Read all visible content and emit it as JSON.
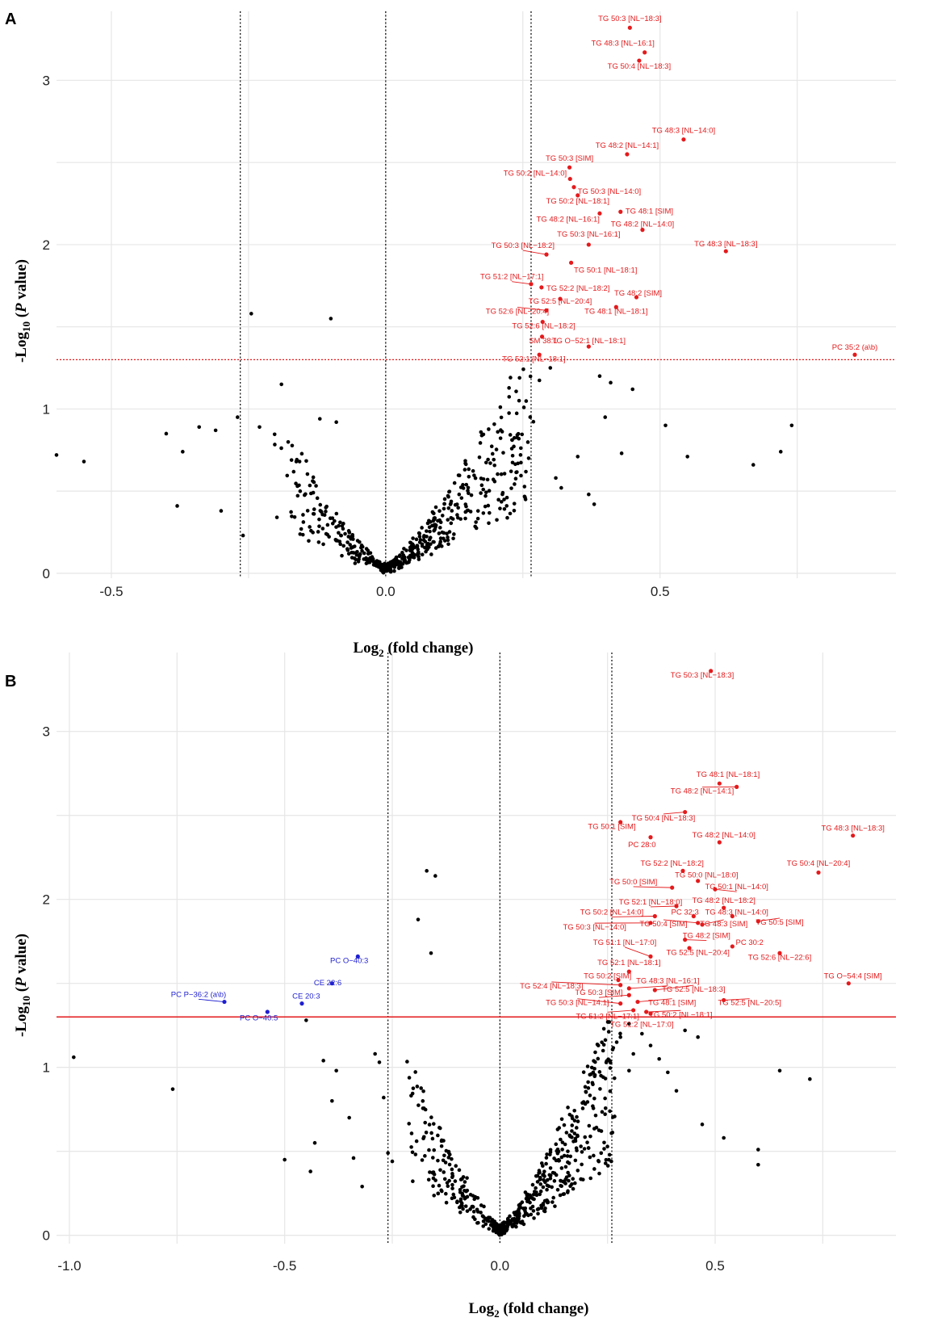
{
  "chart_data": [
    {
      "panel": "A",
      "type": "scatter",
      "xlabel": "Log2 (fold change)",
      "ylabel": "-Log10 (P value)",
      "xticks": [
        "-0.5",
        "0.0",
        "0.5"
      ],
      "yticks": [
        "0",
        "1",
        "2",
        "3"
      ],
      "xlim": [
        -0.6,
        0.93
      ],
      "ylim": [
        -0.03,
        3.42
      ],
      "vlines": [
        -0.265,
        0.0,
        0.265
      ],
      "hline": 1.3,
      "hline_style": "dotted",
      "colors": {
        "point": "#000000",
        "up": "#e41a1c",
        "down": "#1f1fd1",
        "threshold": "#e41a1c"
      },
      "labeled": [
        {
          "label": "TG 50:3 [NL−18:3]",
          "x": 0.445,
          "y": 3.32,
          "lx": 0.445,
          "ly": 3.36,
          "color": "up",
          "anchor": "middle"
        },
        {
          "label": "TG 48:3 [NL−16:1]",
          "x": 0.472,
          "y": 3.17,
          "lx": 0.49,
          "ly": 3.21,
          "color": "up",
          "anchor": "end"
        },
        {
          "label": "TG 50:4 [NL−18:3]",
          "x": 0.462,
          "y": 3.12,
          "lx": 0.462,
          "ly": 3.07,
          "color": "up",
          "anchor": "middle"
        },
        {
          "label": "TG 48:3 [NL−14:0]",
          "x": 0.543,
          "y": 2.64,
          "lx": 0.543,
          "ly": 2.68,
          "color": "up",
          "anchor": "middle"
        },
        {
          "label": "TG 48:2 [NL−14:1]",
          "x": 0.44,
          "y": 2.55,
          "lx": 0.44,
          "ly": 2.59,
          "color": "up",
          "anchor": "middle"
        },
        {
          "label": "TG 50:3 [SIM]",
          "x": 0.335,
          "y": 2.47,
          "lx": 0.335,
          "ly": 2.51,
          "color": "up",
          "anchor": "middle"
        },
        {
          "label": "TG 50:2 [NL−14:0]",
          "x": 0.336,
          "y": 2.4,
          "lx": 0.33,
          "ly": 2.42,
          "color": "up",
          "anchor": "end"
        },
        {
          "label": "TG 50:3 [NL−14:0]",
          "x": 0.343,
          "y": 2.35,
          "lx": 0.35,
          "ly": 2.31,
          "color": "up",
          "anchor": "start"
        },
        {
          "label": "TG 50:2 [NL−18:1]",
          "x": 0.35,
          "y": 2.3,
          "lx": 0.35,
          "ly": 2.25,
          "color": "up",
          "anchor": "middle"
        },
        {
          "label": "TG 48:1 [SIM]",
          "x": 0.428,
          "y": 2.2,
          "lx": 0.437,
          "ly": 2.19,
          "color": "up",
          "anchor": "start"
        },
        {
          "label": "TG 48:2 [NL−16:1]",
          "x": 0.39,
          "y": 2.19,
          "lx": 0.39,
          "ly": 2.14,
          "color": "up",
          "anchor": "end"
        },
        {
          "label": "TG 48:2 [NL−14:0]",
          "x": 0.468,
          "y": 2.09,
          "lx": 0.468,
          "ly": 2.11,
          "color": "up",
          "anchor": "middle"
        },
        {
          "label": "TG 50:3 [NL−16:1]",
          "x": 0.37,
          "y": 2.0,
          "lx": 0.37,
          "ly": 2.05,
          "color": "up",
          "anchor": "middle"
        },
        {
          "label": "TG 48:3 [NL−18:3]",
          "x": 0.62,
          "y": 1.96,
          "lx": 0.62,
          "ly": 1.99,
          "color": "up",
          "anchor": "middle"
        },
        {
          "label": "TG 50:3 [NL−18:2]",
          "x": 0.293,
          "y": 1.94,
          "lx": 0.25,
          "ly": 1.98,
          "color": "up",
          "anchor": "middle"
        },
        {
          "label": "TG 50:1 [NL−18:1]",
          "x": 0.338,
          "y": 1.89,
          "lx": 0.343,
          "ly": 1.83,
          "color": "up",
          "anchor": "start"
        },
        {
          "label": "TG 51:2 [NL−17:1]",
          "x": 0.265,
          "y": 1.76,
          "lx": 0.23,
          "ly": 1.79,
          "color": "up",
          "anchor": "middle"
        },
        {
          "label": "TG 52:2 [NL−18:2]",
          "x": 0.284,
          "y": 1.74,
          "lx": 0.293,
          "ly": 1.72,
          "color": "up",
          "anchor": "start"
        },
        {
          "label": "TG 48:2 [SIM]",
          "x": 0.457,
          "y": 1.68,
          "lx": 0.46,
          "ly": 1.69,
          "color": "up",
          "anchor": "middle"
        },
        {
          "label": "TG 52:5 [NL−20:4]",
          "x": 0.318,
          "y": 1.67,
          "lx": 0.318,
          "ly": 1.64,
          "color": "up",
          "anchor": "middle"
        },
        {
          "label": "TG 52:6 [NL−20:4]",
          "x": 0.293,
          "y": 1.6,
          "lx": 0.24,
          "ly": 1.58,
          "color": "up",
          "anchor": "middle"
        },
        {
          "label": "TG 48:1 [NL−18:1]",
          "x": 0.42,
          "y": 1.62,
          "lx": 0.42,
          "ly": 1.58,
          "color": "up",
          "anchor": "middle"
        },
        {
          "label": "TG 52:6 [NL−18:2]",
          "x": 0.286,
          "y": 1.53,
          "lx": 0.288,
          "ly": 1.49,
          "color": "up",
          "anchor": "middle"
        },
        {
          "label": "SM 38:1",
          "x": 0.285,
          "y": 1.44,
          "lx": 0.287,
          "ly": 1.4,
          "color": "up",
          "anchor": "middle"
        },
        {
          "label": "TG O−52:1 [NL−18:1]",
          "x": 0.37,
          "y": 1.38,
          "lx": 0.37,
          "ly": 1.4,
          "color": "up",
          "anchor": "middle"
        },
        {
          "label": "TG 52:1 [NL−18:1]",
          "x": 0.28,
          "y": 1.33,
          "lx": 0.27,
          "ly": 1.29,
          "color": "up",
          "anchor": "middle"
        },
        {
          "label": "PC 35:2 (a\\b)",
          "x": 0.855,
          "y": 1.33,
          "lx": 0.855,
          "ly": 1.36,
          "color": "up",
          "anchor": "middle"
        }
      ]
    },
    {
      "panel": "B",
      "type": "scatter",
      "xlabel": "Log2 (fold change)",
      "ylabel": "-Log10 (P value)",
      "xticks": [
        "-1.0",
        "-0.5",
        "0.0",
        "0.5"
      ],
      "yticks": [
        "0",
        "1",
        "2",
        "3"
      ],
      "xlim": [
        -1.03,
        0.92
      ],
      "ylim": [
        -0.05,
        3.47
      ],
      "vlines": [
        -0.26,
        0.0,
        0.26
      ],
      "hline": 1.3,
      "hline_style": "solid",
      "colors": {
        "point": "#000000",
        "up": "#e41a1c",
        "down": "#1f1fd1",
        "threshold": "#e41a1c"
      },
      "labeled": [
        {
          "label": "TG 50:3 [NL−18:3]",
          "x": 0.49,
          "y": 3.36,
          "lx": 0.47,
          "ly": 3.32,
          "color": "up",
          "anchor": "middle"
        },
        {
          "label": "TG 48:1 [NL−18:1]",
          "x": 0.51,
          "y": 2.69,
          "lx": 0.53,
          "ly": 2.73,
          "color": "up",
          "anchor": "middle"
        },
        {
          "label": "TG 48:2 [NL−14:1]",
          "x": 0.55,
          "y": 2.67,
          "lx": 0.47,
          "ly": 2.63,
          "color": "up",
          "anchor": "middle"
        },
        {
          "label": "TG 48:3 [NL−18:3]",
          "x": 0.82,
          "y": 2.38,
          "lx": 0.82,
          "ly": 2.41,
          "color": "up",
          "anchor": "middle"
        },
        {
          "label": "TG 50:4 [NL−18:3]",
          "x": 0.43,
          "y": 2.52,
          "lx": 0.38,
          "ly": 2.47,
          "color": "up",
          "anchor": "middle"
        },
        {
          "label": "TG 50:1 [SIM]",
          "x": 0.28,
          "y": 2.46,
          "lx": 0.26,
          "ly": 2.42,
          "color": "up",
          "anchor": "middle"
        },
        {
          "label": "PC 28:0",
          "x": 0.35,
          "y": 2.37,
          "lx": 0.33,
          "ly": 2.31,
          "color": "up",
          "anchor": "middle"
        },
        {
          "label": "TG 48:2 [NL−14:0]",
          "x": 0.51,
          "y": 2.34,
          "lx": 0.52,
          "ly": 2.37,
          "color": "up",
          "anchor": "middle"
        },
        {
          "label": "TG 50:4 [NL−20:4]",
          "x": 0.74,
          "y": 2.16,
          "lx": 0.74,
          "ly": 2.2,
          "color": "up",
          "anchor": "middle"
        },
        {
          "label": "TG 52:2 [NL−18:2]",
          "x": 0.425,
          "y": 2.17,
          "lx": 0.4,
          "ly": 2.2,
          "color": "up",
          "anchor": "middle"
        },
        {
          "label": "TG 50:0 [NL−18:0]",
          "x": 0.46,
          "y": 2.11,
          "lx": 0.48,
          "ly": 2.13,
          "color": "up",
          "anchor": "middle"
        },
        {
          "label": "TG 50:0 [SIM]",
          "x": 0.4,
          "y": 2.07,
          "lx": 0.31,
          "ly": 2.09,
          "color": "up",
          "anchor": "middle"
        },
        {
          "label": "TG 50:1 [NL−14:0]",
          "x": 0.5,
          "y": 2.06,
          "lx": 0.55,
          "ly": 2.06,
          "color": "up",
          "anchor": "middle"
        },
        {
          "label": "TG 52:1 [NL−18:0]",
          "x": 0.41,
          "y": 1.96,
          "lx": 0.35,
          "ly": 1.97,
          "color": "up",
          "anchor": "middle"
        },
        {
          "label": "TG 48:2 [NL−18:2]",
          "x": 0.52,
          "y": 1.95,
          "lx": 0.52,
          "ly": 1.98,
          "color": "up",
          "anchor": "middle"
        },
        {
          "label": "TG 50:2 [NL−14:0]",
          "x": 0.36,
          "y": 1.9,
          "lx": 0.26,
          "ly": 1.91,
          "color": "up",
          "anchor": "middle"
        },
        {
          "label": "PC 32:3",
          "x": 0.45,
          "y": 1.9,
          "lx": 0.43,
          "ly": 1.91,
          "color": "up",
          "anchor": "middle"
        },
        {
          "label": "TG 48:3 [NL−14:0]",
          "x": 0.54,
          "y": 1.9,
          "lx": 0.55,
          "ly": 1.91,
          "color": "up",
          "anchor": "middle"
        },
        {
          "label": "TG 50:3 [NL−14:0]",
          "x": 0.35,
          "y": 1.86,
          "lx": 0.22,
          "ly": 1.82,
          "color": "up",
          "anchor": "middle"
        },
        {
          "label": "TG 50:4 [SIM]",
          "x": 0.46,
          "y": 1.86,
          "lx": 0.38,
          "ly": 1.84,
          "color": "up",
          "anchor": "middle"
        },
        {
          "label": "TG 48:3 [SIM]",
          "x": 0.47,
          "y": 1.85,
          "lx": 0.52,
          "ly": 1.84,
          "color": "up",
          "anchor": "middle"
        },
        {
          "label": "TG 50:5 [SIM]",
          "x": 0.6,
          "y": 1.87,
          "lx": 0.65,
          "ly": 1.85,
          "color": "up",
          "anchor": "middle"
        },
        {
          "label": "TG 48:2 [SIM]",
          "x": 0.43,
          "y": 1.76,
          "lx": 0.48,
          "ly": 1.77,
          "color": "up",
          "anchor": "middle"
        },
        {
          "label": "TG 51:1 [NL−17:0]",
          "x": 0.35,
          "y": 1.66,
          "lx": 0.29,
          "ly": 1.73,
          "color": "up",
          "anchor": "middle"
        },
        {
          "label": "PC 30:2",
          "x": 0.54,
          "y": 1.72,
          "lx": 0.58,
          "ly": 1.73,
          "color": "up",
          "anchor": "middle"
        },
        {
          "label": "TG 52:5 [NL−20:4]",
          "x": 0.44,
          "y": 1.71,
          "lx": 0.46,
          "ly": 1.67,
          "color": "up",
          "anchor": "middle"
        },
        {
          "label": "TG 52:6 [NL−22:6]",
          "x": 0.65,
          "y": 1.68,
          "lx": 0.65,
          "ly": 1.64,
          "color": "up",
          "anchor": "middle"
        },
        {
          "label": "TG 52:1 [NL−18:1]",
          "x": 0.3,
          "y": 1.57,
          "lx": 0.3,
          "ly": 1.61,
          "color": "up",
          "anchor": "middle"
        },
        {
          "label": "TG 50:2 [SIM]",
          "x": 0.275,
          "y": 1.52,
          "lx": 0.25,
          "ly": 1.53,
          "color": "up",
          "anchor": "middle"
        },
        {
          "label": "TG 48:3 [NL−16:1]",
          "x": 0.3,
          "y": 1.47,
          "lx": 0.39,
          "ly": 1.5,
          "color": "up",
          "anchor": "middle"
        },
        {
          "label": "TG O−54:4 [SIM]",
          "x": 0.81,
          "y": 1.5,
          "lx": 0.82,
          "ly": 1.53,
          "color": "up",
          "anchor": "middle"
        },
        {
          "label": "TG 52:4 [NL−18:3]",
          "x": 0.28,
          "y": 1.49,
          "lx": 0.12,
          "ly": 1.47,
          "color": "up",
          "anchor": "middle"
        },
        {
          "label": "TG 52:5 [NL−18:3]",
          "x": 0.36,
          "y": 1.46,
          "lx": 0.45,
          "ly": 1.45,
          "color": "up",
          "anchor": "middle"
        },
        {
          "label": "TG 50:3 [SIM]",
          "x": 0.3,
          "y": 1.43,
          "lx": 0.23,
          "ly": 1.43,
          "color": "up",
          "anchor": "middle"
        },
        {
          "label": "TG 48:1 [SIM]",
          "x": 0.32,
          "y": 1.39,
          "lx": 0.4,
          "ly": 1.37,
          "color": "up",
          "anchor": "middle"
        },
        {
          "label": "TG 50:3 [NL−14:1]",
          "x": 0.28,
          "y": 1.38,
          "lx": 0.18,
          "ly": 1.37,
          "color": "up",
          "anchor": "middle"
        },
        {
          "label": "TG 52:5 [NL−20:5]",
          "x": 0.52,
          "y": 1.4,
          "lx": 0.58,
          "ly": 1.37,
          "color": "up",
          "anchor": "middle"
        },
        {
          "label": "TG 51:2 [NL−17:1]",
          "x": 0.31,
          "y": 1.34,
          "lx": 0.25,
          "ly": 1.29,
          "color": "up",
          "anchor": "middle"
        },
        {
          "label": "TG 50:2 [NL−18:1]",
          "x": 0.34,
          "y": 1.33,
          "lx": 0.42,
          "ly": 1.3,
          "color": "up",
          "anchor": "middle"
        },
        {
          "label": "TG 51:2 [NL−17:0]",
          "x": 0.35,
          "y": 1.32,
          "lx": 0.33,
          "ly": 1.24,
          "color": "up",
          "anchor": "middle"
        },
        {
          "label": "PC O−40:3",
          "x": -0.33,
          "y": 1.66,
          "lx": -0.35,
          "ly": 1.62,
          "color": "down",
          "anchor": "middle"
        },
        {
          "label": "CE 22:6",
          "x": -0.39,
          "y": 1.5,
          "lx": -0.4,
          "ly": 1.49,
          "color": "down",
          "anchor": "middle"
        },
        {
          "label": "PC P−36:2 (a\\b)",
          "x": -0.64,
          "y": 1.39,
          "lx": -0.7,
          "ly": 1.42,
          "color": "down",
          "anchor": "middle"
        },
        {
          "label": "CE 20:3",
          "x": -0.46,
          "y": 1.38,
          "lx": -0.45,
          "ly": 1.41,
          "color": "down",
          "anchor": "middle"
        },
        {
          "label": "PC O−40:5",
          "x": -0.54,
          "y": 1.33,
          "lx": -0.56,
          "ly": 1.28,
          "color": "down",
          "anchor": "middle"
        }
      ]
    }
  ]
}
